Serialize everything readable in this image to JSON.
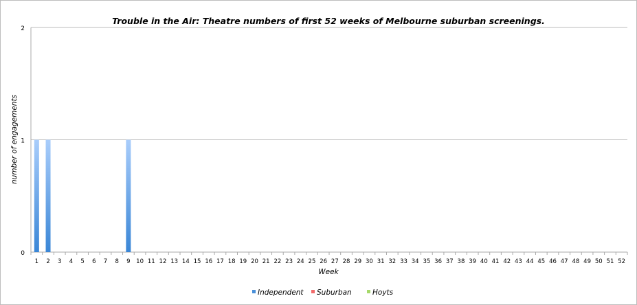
{
  "chart_data": {
    "type": "bar",
    "stacked": true,
    "title": "Trouble in the Air: Theatre numbers of first 52 weeks of Melbourne suburban screenings.",
    "xlabel": "Week",
    "ylabel": "number of engagements",
    "ylim": [
      0,
      2
    ],
    "yticks": [
      "0",
      "1",
      "2"
    ],
    "grid": true,
    "legend_position": "bottom",
    "categories": [
      "1",
      "2",
      "3",
      "4",
      "5",
      "6",
      "7",
      "8",
      "9",
      "10",
      "11",
      "12",
      "13",
      "14",
      "15",
      "16",
      "17",
      "18",
      "19",
      "20",
      "21",
      "22",
      "23",
      "24",
      "25",
      "26",
      "27",
      "28",
      "29",
      "30",
      "31",
      "32",
      "33",
      "34",
      "35",
      "36",
      "37",
      "38",
      "39",
      "40",
      "41",
      "42",
      "43",
      "44",
      "45",
      "46",
      "47",
      "48",
      "49",
      "50",
      "51",
      "52"
    ],
    "series": [
      {
        "name": "Independent",
        "color": "#4a90d9",
        "values": [
          1,
          1,
          0,
          0,
          0,
          0,
          0,
          0,
          1,
          0,
          0,
          0,
          0,
          0,
          0,
          0,
          0,
          0,
          0,
          0,
          0,
          0,
          0,
          0,
          0,
          0,
          0,
          0,
          0,
          0,
          0,
          0,
          0,
          0,
          0,
          0,
          0,
          0,
          0,
          0,
          0,
          0,
          0,
          0,
          0,
          0,
          0,
          0,
          0,
          0,
          0,
          0
        ]
      },
      {
        "name": "Suburban",
        "color": "#f26b6b",
        "values": [
          0,
          0,
          0,
          0,
          0,
          0,
          0,
          0,
          0,
          0,
          0,
          0,
          0,
          0,
          0,
          0,
          0,
          0,
          0,
          0,
          0,
          0,
          0,
          0,
          0,
          0,
          0,
          0,
          0,
          0,
          0,
          0,
          0,
          0,
          0,
          0,
          0,
          0,
          0,
          0,
          0,
          0,
          0,
          0,
          0,
          0,
          0,
          0,
          0,
          0,
          0,
          0
        ]
      },
      {
        "name": "Hoyts",
        "color": "#a6d96a",
        "values": [
          0,
          0,
          0,
          0,
          0,
          0,
          0,
          0,
          0,
          0,
          0,
          0,
          0,
          0,
          0,
          0,
          0,
          0,
          0,
          0,
          0,
          0,
          0,
          0,
          0,
          0,
          0,
          0,
          0,
          0,
          0,
          0,
          0,
          0,
          0,
          0,
          0,
          0,
          0,
          0,
          0,
          0,
          0,
          0,
          0,
          0,
          0,
          0,
          0,
          0,
          0,
          0
        ]
      }
    ]
  }
}
